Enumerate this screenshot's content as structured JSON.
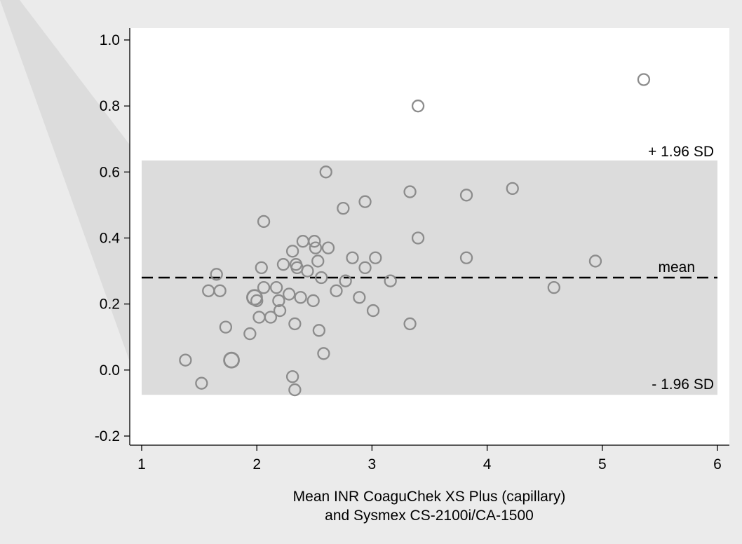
{
  "chart_data": {
    "type": "scatter",
    "title": "",
    "xlabel_lines": [
      "Mean INR CoaguChek XS Plus (capillary)",
      "and Sysmex CS-2100i/CA-1500"
    ],
    "ylabel": "",
    "xlim": [
      1,
      6
    ],
    "ylim": [
      -0.25,
      1.03
    ],
    "x_ticks": [
      "1",
      "2",
      "3",
      "4",
      "5",
      "6"
    ],
    "y_ticks": [
      "-0.2",
      "0.0",
      "0.2",
      "0.4",
      "0.6",
      "0.8",
      "1.0"
    ],
    "mean": 0.28,
    "upper_loa": 0.635,
    "lower_loa": -0.075,
    "labels": {
      "upper": "+ 1.96 SD",
      "mean": "mean",
      "lower": "- 1.96 SD"
    },
    "grid": false,
    "colors": {
      "background": "#ebebeb",
      "plot": "#ffffff",
      "band": "#dcdcdc",
      "marker": "#8c8c8c",
      "mean_line": "#000000"
    },
    "points": [
      {
        "x": 1.38,
        "y": 0.03
      },
      {
        "x": 1.52,
        "y": -0.04
      },
      {
        "x": 1.58,
        "y": 0.24
      },
      {
        "x": 1.65,
        "y": 0.29
      },
      {
        "x": 1.68,
        "y": 0.24
      },
      {
        "x": 1.73,
        "y": 0.13
      },
      {
        "x": 1.78,
        "y": 0.03,
        "size": 2
      },
      {
        "x": 1.94,
        "y": 0.11
      },
      {
        "x": 1.98,
        "y": 0.22,
        "size": 2
      },
      {
        "x": 2.0,
        "y": 0.21
      },
      {
        "x": 2.02,
        "y": 0.16
      },
      {
        "x": 2.04,
        "y": 0.31
      },
      {
        "x": 2.06,
        "y": 0.45
      },
      {
        "x": 2.06,
        "y": 0.25
      },
      {
        "x": 2.12,
        "y": 0.16
      },
      {
        "x": 2.17,
        "y": 0.25
      },
      {
        "x": 2.19,
        "y": 0.21
      },
      {
        "x": 2.2,
        "y": 0.18
      },
      {
        "x": 2.23,
        "y": 0.32
      },
      {
        "x": 2.28,
        "y": 0.23
      },
      {
        "x": 2.31,
        "y": 0.36
      },
      {
        "x": 2.31,
        "y": -0.02
      },
      {
        "x": 2.33,
        "y": 0.14
      },
      {
        "x": 2.33,
        "y": -0.06
      },
      {
        "x": 2.34,
        "y": 0.32
      },
      {
        "x": 2.35,
        "y": 0.31
      },
      {
        "x": 2.38,
        "y": 0.22
      },
      {
        "x": 2.4,
        "y": 0.39
      },
      {
        "x": 2.44,
        "y": 0.3
      },
      {
        "x": 2.49,
        "y": 0.21
      },
      {
        "x": 2.5,
        "y": 0.39
      },
      {
        "x": 2.51,
        "y": 0.37
      },
      {
        "x": 2.53,
        "y": 0.33
      },
      {
        "x": 2.54,
        "y": 0.12
      },
      {
        "x": 2.56,
        "y": 0.28
      },
      {
        "x": 2.58,
        "y": 0.05
      },
      {
        "x": 2.6,
        "y": 0.6
      },
      {
        "x": 2.62,
        "y": 0.37
      },
      {
        "x": 2.69,
        "y": 0.24
      },
      {
        "x": 2.75,
        "y": 0.49
      },
      {
        "x": 2.77,
        "y": 0.27
      },
      {
        "x": 2.83,
        "y": 0.34
      },
      {
        "x": 2.89,
        "y": 0.22
      },
      {
        "x": 2.94,
        "y": 0.51
      },
      {
        "x": 2.94,
        "y": 0.31
      },
      {
        "x": 3.01,
        "y": 0.18
      },
      {
        "x": 3.03,
        "y": 0.34
      },
      {
        "x": 3.16,
        "y": 0.27
      },
      {
        "x": 3.33,
        "y": 0.54
      },
      {
        "x": 3.33,
        "y": 0.14
      },
      {
        "x": 3.4,
        "y": 0.8
      },
      {
        "x": 3.4,
        "y": 0.4
      },
      {
        "x": 3.82,
        "y": 0.53
      },
      {
        "x": 3.82,
        "y": 0.34
      },
      {
        "x": 4.22,
        "y": 0.55
      },
      {
        "x": 4.58,
        "y": 0.25
      },
      {
        "x": 4.94,
        "y": 0.33
      },
      {
        "x": 5.36,
        "y": 0.88
      }
    ]
  }
}
